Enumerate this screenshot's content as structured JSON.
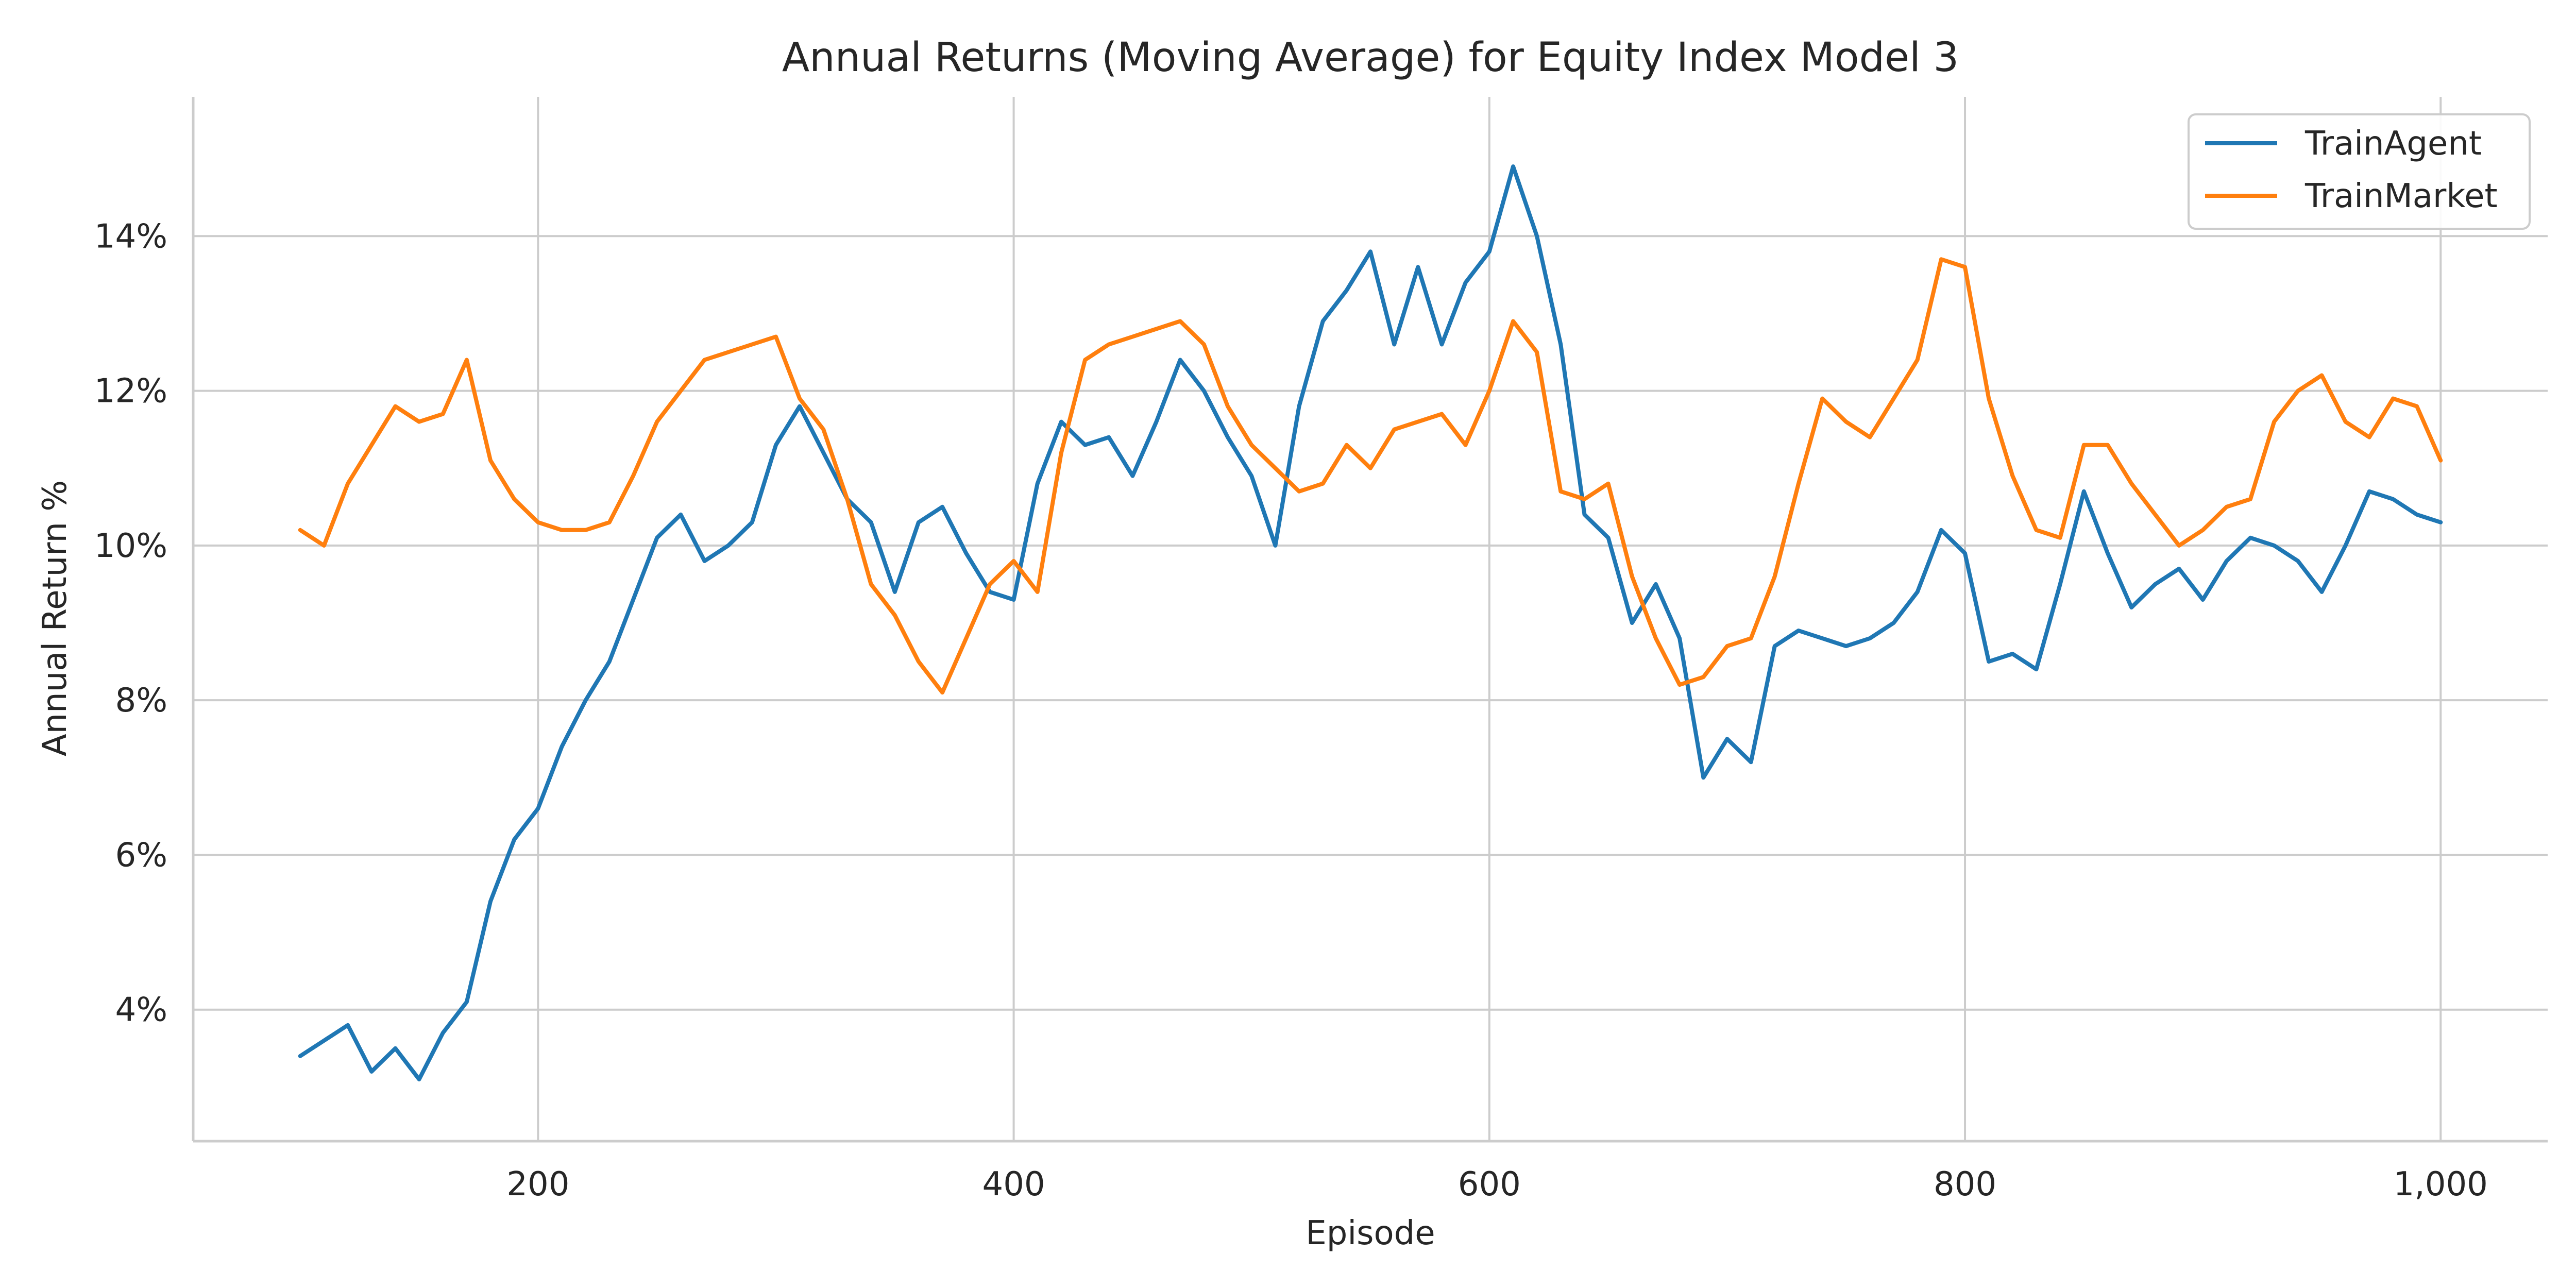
{
  "chart_data": {
    "type": "line",
    "title": "Annual Returns (Moving Average) for Equity Index Model 3",
    "xlabel": "Episode",
    "ylabel": "Annual Return %",
    "xlim": [
      55,
      1045
    ],
    "ylim": [
      2.3,
      15.8
    ],
    "x_ticks": [
      200,
      400,
      600,
      800,
      1000
    ],
    "x_tick_labels": [
      "200",
      "400",
      "600",
      "800",
      "1,000"
    ],
    "y_ticks": [
      4,
      6,
      8,
      10,
      12,
      14
    ],
    "y_tick_labels": [
      "4%",
      "6%",
      "8%",
      "10%",
      "12%",
      "14%"
    ],
    "grid": true,
    "legend": "top-right",
    "x": [
      100,
      110,
      120,
      130,
      140,
      150,
      160,
      170,
      180,
      190,
      200,
      210,
      220,
      230,
      240,
      250,
      260,
      270,
      280,
      290,
      300,
      310,
      320,
      330,
      340,
      350,
      360,
      370,
      380,
      390,
      400,
      410,
      420,
      430,
      440,
      450,
      460,
      470,
      480,
      490,
      500,
      510,
      520,
      530,
      540,
      550,
      560,
      570,
      580,
      590,
      600,
      610,
      620,
      630,
      640,
      650,
      660,
      670,
      680,
      690,
      700,
      710,
      720,
      730,
      740,
      750,
      760,
      770,
      780,
      790,
      800,
      810,
      820,
      830,
      840,
      850,
      860,
      870,
      880,
      890,
      900,
      910,
      920,
      930,
      940,
      950,
      960,
      970,
      980,
      990,
      1000
    ],
    "series": [
      {
        "name": "TrainAgent",
        "color": "#1f77b4",
        "values": [
          3.4,
          3.6,
          3.8,
          3.2,
          3.5,
          3.1,
          3.7,
          4.1,
          5.4,
          6.2,
          6.6,
          7.4,
          8.0,
          8.5,
          9.3,
          10.1,
          10.4,
          9.8,
          10.0,
          10.3,
          11.3,
          11.8,
          11.2,
          10.6,
          10.3,
          9.4,
          10.3,
          10.5,
          9.9,
          9.4,
          9.3,
          10.8,
          11.6,
          11.3,
          11.4,
          10.9,
          11.6,
          12.4,
          12.0,
          11.4,
          10.9,
          10.0,
          11.8,
          12.9,
          13.3,
          13.8,
          12.6,
          13.6,
          12.6,
          13.4,
          13.8,
          14.9,
          14.0,
          12.6,
          10.4,
          10.1,
          9.0,
          9.5,
          8.8,
          7.0,
          7.5,
          7.2,
          8.7,
          8.9,
          8.8,
          8.7,
          8.8,
          9.0,
          9.4,
          10.2,
          9.9,
          8.5,
          8.6,
          8.4,
          9.5,
          10.7,
          9.9,
          9.2,
          9.5,
          9.7,
          9.3,
          9.8,
          10.1,
          10.0,
          9.8,
          9.4,
          10.0,
          10.7,
          10.6,
          10.4,
          10.3
        ]
      },
      {
        "name": "TrainMarket",
        "color": "#ff7f0e",
        "values": [
          10.2,
          10.0,
          10.8,
          11.3,
          11.8,
          11.6,
          11.7,
          12.4,
          11.1,
          10.6,
          10.3,
          10.2,
          10.2,
          10.3,
          10.9,
          11.6,
          12.0,
          12.4,
          12.5,
          12.6,
          12.7,
          11.9,
          11.5,
          10.6,
          9.5,
          9.1,
          8.5,
          8.1,
          8.8,
          9.5,
          9.8,
          9.4,
          11.2,
          12.4,
          12.6,
          12.7,
          12.8,
          12.9,
          12.6,
          11.8,
          11.3,
          11.0,
          10.7,
          10.8,
          11.3,
          11.0,
          11.5,
          11.6,
          11.7,
          11.3,
          12.0,
          12.9,
          12.5,
          10.7,
          10.6,
          10.8,
          9.6,
          8.8,
          8.2,
          8.3,
          8.7,
          8.8,
          9.6,
          10.8,
          11.9,
          11.6,
          11.4,
          11.9,
          12.4,
          13.7,
          13.6,
          11.9,
          10.9,
          10.2,
          10.1,
          11.3,
          11.3,
          10.8,
          10.4,
          10.0,
          10.2,
          10.5,
          10.6,
          11.6,
          12.0,
          12.2,
          11.6,
          11.4,
          11.9,
          11.8,
          11.1
        ]
      }
    ]
  }
}
